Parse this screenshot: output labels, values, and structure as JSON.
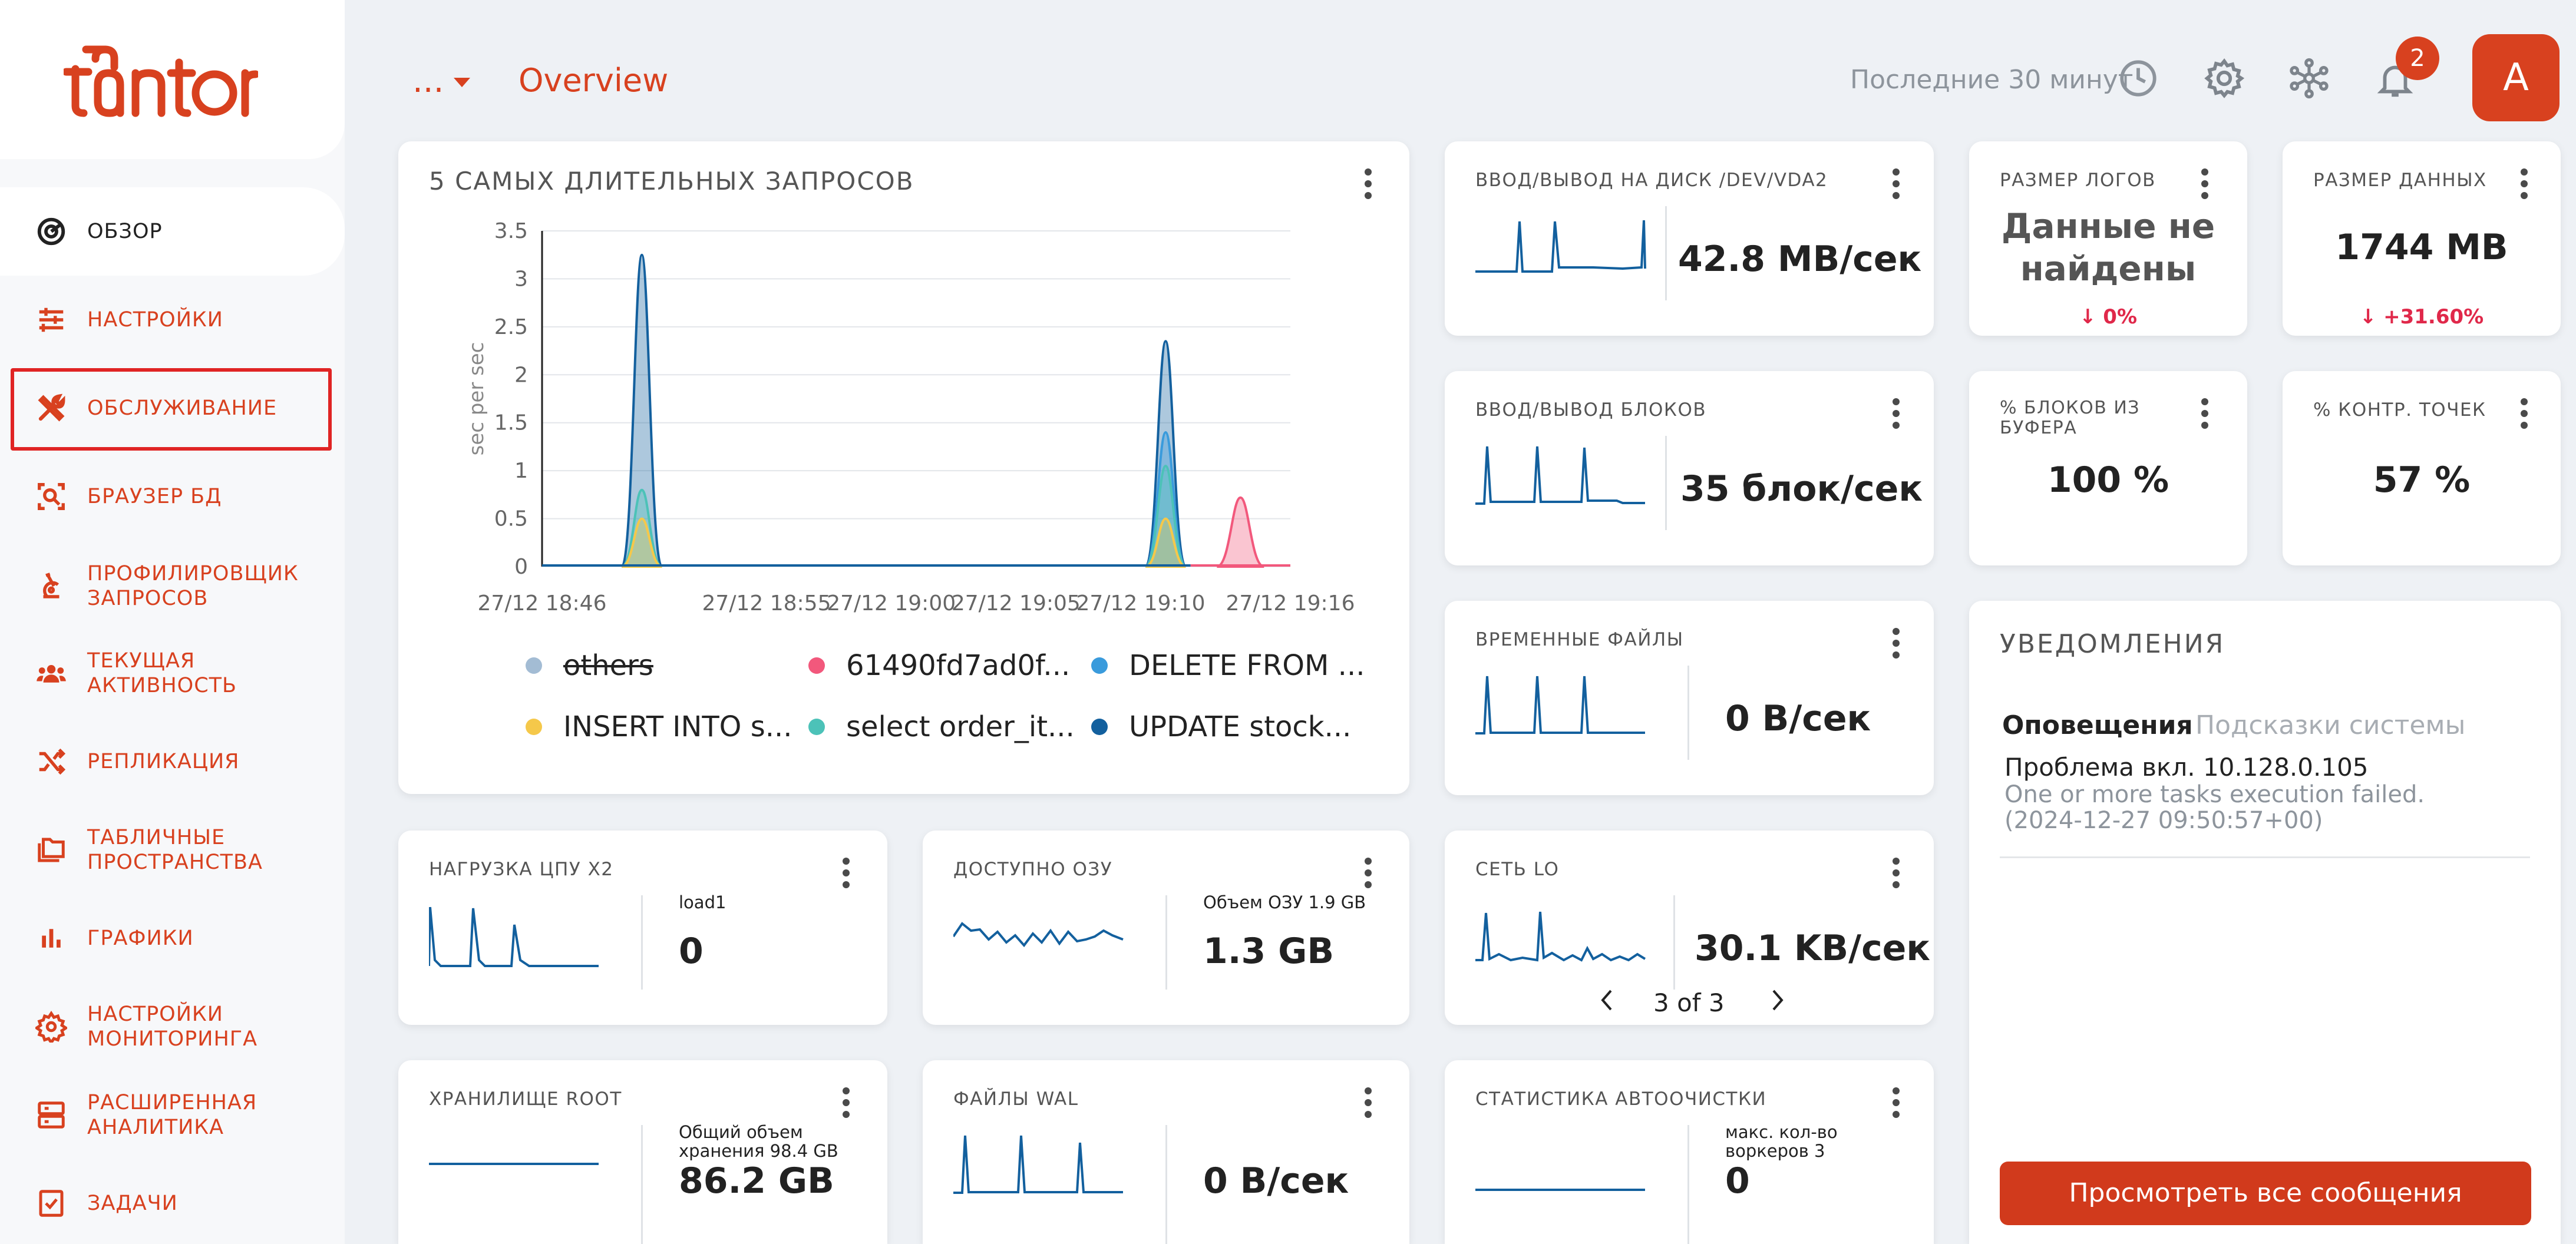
{
  "brand": {
    "logo_text": "tantor",
    "color": "#d8411f"
  },
  "header": {
    "dots": "...",
    "title": "Overview",
    "time_range": "Последние 30 минут",
    "notifications_count": "2",
    "avatar_letter": "A"
  },
  "sidebar": {
    "items": [
      {
        "label": "ОБЗОР",
        "icon": "overview-icon"
      },
      {
        "label": "НАСТРОЙКИ",
        "icon": "sliders-icon"
      },
      {
        "label": "ОБСЛУЖИВАНИЕ",
        "icon": "tools-icon"
      },
      {
        "label": "БРАУЗЕР БД",
        "icon": "db-browser-icon"
      },
      {
        "label_1": "ПРОФИЛИРОВЩИК",
        "label_2": "ЗАПРОСОВ",
        "icon": "microscope-icon"
      },
      {
        "label": "ТЕКУЩАЯ АКТИВНОСТЬ",
        "icon": "users-icon"
      },
      {
        "label": "РЕПЛИКАЦИЯ",
        "icon": "shuffle-icon"
      },
      {
        "label_1": "ТАБЛИЧНЫЕ",
        "label_2": "ПРОСТРАНСТВА",
        "icon": "folders-icon"
      },
      {
        "label": "ГРАФИКИ",
        "icon": "bar-chart-icon"
      },
      {
        "label_1": "НАСТРОЙКИ",
        "label_2": "МОНИТОРИНГА",
        "icon": "gear-icon"
      },
      {
        "label_1": "РАСШИРЕННАЯ",
        "label_2": "АНАЛИТИКА",
        "icon": "server-icon"
      },
      {
        "label": "ЗАДАЧИ",
        "icon": "checklist-icon"
      }
    ]
  },
  "queries_card": {
    "title": "5 САМЫХ ДЛИТЕЛЬНЫХ ЗАПРОСОВ",
    "legend": [
      {
        "name": "others",
        "color": "#a3bcd4",
        "hidden": true
      },
      {
        "name": "61490fd7ad0f...",
        "color": "#f2587c"
      },
      {
        "name": "DELETE FROM ...",
        "color": "#3a9bdc"
      },
      {
        "name": "INSERT INTO s...",
        "color": "#f5c84a"
      },
      {
        "name": "select order_it...",
        "color": "#4cc2b8"
      },
      {
        "name": "UPDATE stock...",
        "color": "#13609e"
      }
    ]
  },
  "chart_data": {
    "type": "area",
    "title": "5 САМЫХ ДЛИТЕЛЬНЫХ ЗАПРОСОВ",
    "ylabel": "sec per sec",
    "ylim": [
      0,
      3.5
    ],
    "yticks": [
      "0",
      "0.5",
      "1",
      "1.5",
      "2",
      "2.5",
      "3",
      "3.5"
    ],
    "xticks": [
      "27/12 18:46",
      "27/12 18:55",
      "27/12 19:00",
      "27/12 19:05",
      "27/12 19:10",
      "27/12 19:16"
    ],
    "peaks": [
      {
        "series": "UPDATE stock...",
        "at": "27/12 18:50",
        "value": 3.25
      },
      {
        "series": "select order_it...",
        "at": "27/12 18:50",
        "value": 0.8
      },
      {
        "series": "INSERT INTO s...",
        "at": "27/12 18:50",
        "value": 0.5
      },
      {
        "series": "UPDATE stock...",
        "at": "27/12 19:11",
        "value": 2.35
      },
      {
        "series": "DELETE FROM ...",
        "at": "27/12 19:11",
        "value": 1.4
      },
      {
        "series": "select order_it...",
        "at": "27/12 19:11",
        "value": 1.05
      },
      {
        "series": "INSERT INTO s...",
        "at": "27/12 19:11",
        "value": 0.5
      },
      {
        "series": "61490fd7ad0f...",
        "at": "27/12 19:14",
        "value": 0.72
      }
    ]
  },
  "metrics": {
    "disk_io": {
      "title": "ВВОД/ВЫВОД НА ДИСК /DEV/VDA2",
      "value": "42.8 MB/сек"
    },
    "block_io": {
      "title": "ВВОД/ВЫВОД БЛОКОВ",
      "value": "35 блок/сек"
    },
    "temp_files": {
      "title": "ВРЕМЕННЫЕ ФАЙЛЫ",
      "value": "0 B/сек"
    },
    "net_lo": {
      "title": "СЕТЬ LO",
      "value": "30.1 KB/сек",
      "pager": "3 of 3"
    },
    "autovacuum": {
      "title": "СТАТИСТИКА АВТООЧИСТКИ",
      "label_1": "макс. кол-во",
      "label_2": "воркеров 3",
      "value": "0"
    },
    "cpu": {
      "title": "НАГРУЗКА ЦПУ X2",
      "label": "load1",
      "value": "0"
    },
    "ram": {
      "title": "ДОСТУПНО ОЗУ",
      "label": "Объем ОЗУ 1.9 GB",
      "value": "1.3 GB"
    },
    "storage": {
      "title": "ХРАНИЛИЩЕ ROOT",
      "label_1": "Общий объем",
      "label_2": "хранения 98.4 GB",
      "value": "86.2 GB"
    },
    "wal": {
      "title": "ФАЙЛЫ WAL",
      "value": "0 B/сек"
    },
    "logs_size": {
      "title": "РАЗМЕР ЛОГОВ",
      "value_1": "Данные не",
      "value_2": "найдены",
      "delta": "↓ 0%"
    },
    "data_size": {
      "title": "РАЗМЕР ДАННЫХ",
      "value": "1744 MB",
      "delta": "↓ +31.60%"
    },
    "buffer_pct": {
      "title_1": "% БЛОКОВ ИЗ",
      "title_2": "БУФЕРА",
      "value": "100 %"
    },
    "checkpoint_pct": {
      "title": "% КОНТР. ТОЧЕК",
      "value": "57 %"
    }
  },
  "notifications": {
    "title": "УВЕДОМЛЕНИЯ",
    "tab_alerts": "Оповещения",
    "tab_hints": "Подсказки системы",
    "items": [
      {
        "title": "Проблема вкл. 10.128.0.105",
        "message": "One or more tasks execution failed.",
        "time": "(2024-12-27 09:50:57+00)"
      }
    ],
    "view_all": "Просмотреть все сообщения"
  }
}
